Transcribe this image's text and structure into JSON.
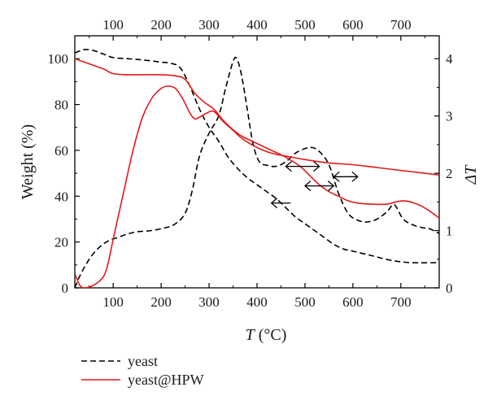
{
  "chart_data": {
    "type": "line",
    "xlabel": "T",
    "xlabel_unit": " (°C)",
    "ylabel_left": "Weight (%)",
    "ylabel_right": "ΔT",
    "xlim": [
      20,
      780
    ],
    "ylim_left": [
      0,
      110
    ],
    "ylim_right": [
      0,
      4.4
    ],
    "x_ticks": [
      100,
      200,
      300,
      400,
      500,
      600,
      700
    ],
    "y_left_ticks": [
      0,
      20,
      40,
      60,
      80,
      100
    ],
    "y_right_ticks": [
      0,
      1,
      2,
      3,
      4
    ],
    "grid": false,
    "legend_position": "bottom-left",
    "series": [
      {
        "name": "yeast",
        "kind": "TG",
        "axis": "left",
        "color": "#000000",
        "dash": "dashed",
        "points": [
          [
            20,
            102.5
          ],
          [
            40,
            104
          ],
          [
            60,
            103.5
          ],
          [
            80,
            102
          ],
          [
            100,
            100.5
          ],
          [
            130,
            100
          ],
          [
            160,
            99.5
          ],
          [
            200,
            98.5
          ],
          [
            220,
            98
          ],
          [
            240,
            96
          ],
          [
            260,
            88
          ],
          [
            280,
            78
          ],
          [
            300,
            70
          ],
          [
            320,
            64
          ],
          [
            340,
            57
          ],
          [
            360,
            52
          ],
          [
            380,
            48
          ],
          [
            400,
            45
          ],
          [
            420,
            42
          ],
          [
            440,
            39
          ],
          [
            460,
            35
          ],
          [
            480,
            31
          ],
          [
            500,
            28
          ],
          [
            520,
            25
          ],
          [
            540,
            22
          ],
          [
            560,
            19
          ],
          [
            580,
            17
          ],
          [
            600,
            16
          ],
          [
            640,
            14
          ],
          [
            680,
            12
          ],
          [
            720,
            11
          ],
          [
            780,
            11
          ]
        ]
      },
      {
        "name": "yeast",
        "kind": "DTA",
        "axis": "right",
        "color": "#000000",
        "dash": "dashed",
        "points": [
          [
            20,
            0
          ],
          [
            30,
            0.2
          ],
          [
            50,
            0.5
          ],
          [
            70,
            0.7
          ],
          [
            90,
            0.82
          ],
          [
            110,
            0.88
          ],
          [
            130,
            0.94
          ],
          [
            150,
            0.98
          ],
          [
            180,
            1.0
          ],
          [
            210,
            1.05
          ],
          [
            230,
            1.12
          ],
          [
            250,
            1.3
          ],
          [
            265,
            1.7
          ],
          [
            280,
            2.3
          ],
          [
            300,
            2.7
          ],
          [
            320,
            3.0
          ],
          [
            335,
            3.5
          ],
          [
            350,
            3.95
          ],
          [
            358,
            4.0
          ],
          [
            368,
            3.7
          ],
          [
            380,
            3.1
          ],
          [
            392,
            2.5
          ],
          [
            405,
            2.2
          ],
          [
            420,
            2.14
          ],
          [
            440,
            2.12
          ],
          [
            460,
            2.2
          ],
          [
            480,
            2.35
          ],
          [
            500,
            2.43
          ],
          [
            515,
            2.45
          ],
          [
            530,
            2.38
          ],
          [
            550,
            2.15
          ],
          [
            570,
            1.65
          ],
          [
            590,
            1.3
          ],
          [
            610,
            1.18
          ],
          [
            630,
            1.15
          ],
          [
            650,
            1.2
          ],
          [
            670,
            1.32
          ],
          [
            683,
            1.45
          ],
          [
            690,
            1.42
          ],
          [
            705,
            1.2
          ],
          [
            725,
            1.1
          ],
          [
            745,
            1.05
          ],
          [
            760,
            1.03
          ],
          [
            780,
            0.95
          ]
        ]
      },
      {
        "name": "yeast@HPW",
        "kind": "TG",
        "axis": "left",
        "color": "#e31a1c",
        "dash": "solid",
        "points": [
          [
            20,
            100
          ],
          [
            40,
            98.5
          ],
          [
            60,
            97
          ],
          [
            80,
            95.5
          ],
          [
            100,
            93.5
          ],
          [
            130,
            93
          ],
          [
            160,
            93
          ],
          [
            200,
            93
          ],
          [
            230,
            92.5
          ],
          [
            250,
            91
          ],
          [
            270,
            85
          ],
          [
            290,
            81
          ],
          [
            310,
            78
          ],
          [
            330,
            73
          ],
          [
            350,
            69
          ],
          [
            370,
            66
          ],
          [
            400,
            63
          ],
          [
            430,
            60
          ],
          [
            460,
            57
          ],
          [
            490,
            53
          ],
          [
            510,
            49
          ],
          [
            530,
            45
          ],
          [
            550,
            42
          ],
          [
            570,
            40
          ],
          [
            590,
            38
          ],
          [
            610,
            37
          ],
          [
            640,
            36.5
          ],
          [
            670,
            36.5
          ],
          [
            690,
            37.5
          ],
          [
            705,
            38
          ],
          [
            720,
            37.5
          ],
          [
            740,
            36
          ],
          [
            760,
            33.5
          ],
          [
            780,
            30.5
          ]
        ]
      },
      {
        "name": "yeast@HPW",
        "kind": "DTA",
        "axis": "right",
        "color": "#e31a1c",
        "dash": "solid",
        "points": [
          [
            20,
            0.25
          ],
          [
            30,
            0.05
          ],
          [
            40,
            0
          ],
          [
            60,
            0.05
          ],
          [
            80,
            0.2
          ],
          [
            90,
            0.45
          ],
          [
            100,
            0.85
          ],
          [
            120,
            1.6
          ],
          [
            140,
            2.35
          ],
          [
            160,
            2.95
          ],
          [
            180,
            3.3
          ],
          [
            200,
            3.48
          ],
          [
            215,
            3.52
          ],
          [
            230,
            3.48
          ],
          [
            245,
            3.3
          ],
          [
            260,
            3.05
          ],
          [
            270,
            2.95
          ],
          [
            280,
            2.98
          ],
          [
            295,
            3.05
          ],
          [
            310,
            3.08
          ],
          [
            330,
            2.9
          ],
          [
            350,
            2.75
          ],
          [
            370,
            2.6
          ],
          [
            400,
            2.45
          ],
          [
            430,
            2.35
          ],
          [
            460,
            2.3
          ],
          [
            500,
            2.24
          ],
          [
            550,
            2.18
          ],
          [
            600,
            2.15
          ],
          [
            650,
            2.1
          ],
          [
            700,
            2.05
          ],
          [
            750,
            2.0
          ],
          [
            780,
            1.97
          ]
        ]
      }
    ],
    "legend": [
      {
        "label": "yeast",
        "color": "#000000",
        "dash": "dashed"
      },
      {
        "label": "yeast@HPW",
        "color": "#e31a1c",
        "dash": "solid"
      }
    ],
    "annotations": [
      {
        "type": "double-arrow",
        "x_from": 460,
        "x_to": 530,
        "y_axis": "left",
        "y": 53
      },
      {
        "type": "double-arrow",
        "x_from": 560,
        "x_to": 610,
        "y_axis": "left",
        "y": 48.5
      },
      {
        "type": "double-arrow",
        "x_from": 500,
        "x_to": 560,
        "y_axis": "left",
        "y": 44.5
      },
      {
        "type": "left-arrow",
        "x_from": 470,
        "x_to": 430,
        "y_axis": "left",
        "y": 37
      }
    ]
  }
}
